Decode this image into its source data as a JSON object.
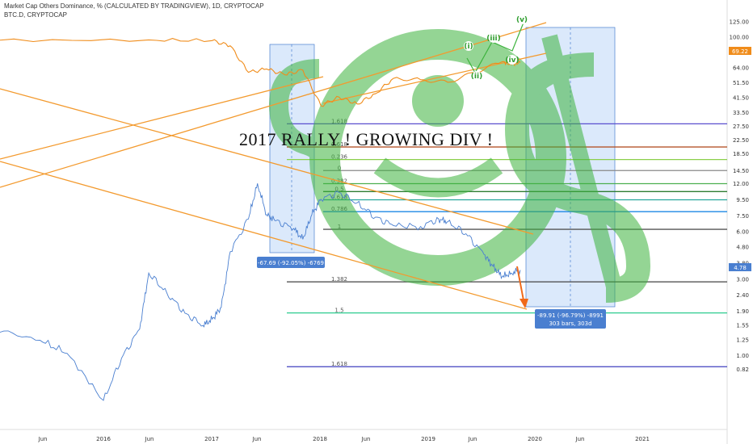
{
  "header": {
    "title": "Market Cap Others Dominance, % (CALCULATED BY TRADINGVIEW), 1D, CRYPTOCAP",
    "subtitle": "BTC.D, CRYPTOCAP"
  },
  "annotation_text": "2017 RALLY !   GROWING DIV !",
  "measure_boxes": [
    {
      "label": "-67.69 (-92.05%) -6769"
    },
    {
      "line1": "-89.91 (-96.79%) -8991",
      "line2": "303 bars, 303d"
    }
  ],
  "price_tags": {
    "upper": "69.22",
    "lower": "4.78"
  },
  "colors": {
    "others_line": "#4a7fd0",
    "btcd_line": "#f08c1a",
    "trend_lines": "#f39a2e",
    "measure_fill": "#dbe9fb",
    "measure_border": "#4a7fd0",
    "watermark": "#3db33d",
    "wave_labels": "#2e9e2e",
    "arrow": "#f06a1a"
  },
  "watermark_icon": "crypto-logo-icon",
  "chart_data": {
    "type": "line",
    "scale": "log",
    "y_ticks": [
      "125.00",
      "100.00",
      "80.00",
      "64.00",
      "51.50",
      "41.50",
      "33.50",
      "27.50",
      "22.50",
      "18.50",
      "14.50",
      "12.00",
      "9.50",
      "7.50",
      "6.00",
      "4.80",
      "3.80",
      "3.00",
      "2.40",
      "1.90",
      "1.55",
      "1.25",
      "1.00",
      "0.82"
    ],
    "x_ticks": [
      "Jun",
      "2016",
      "Jun",
      "2017",
      "Jun",
      "2018",
      "Jun",
      "2019",
      "Jun",
      "2020",
      "Jun",
      "2021"
    ],
    "x_range": [
      "2015-01",
      "2021-06"
    ],
    "series": [
      {
        "name": "BTC.D, CRYPTOCAP",
        "axis": "upper",
        "points": [
          [
            "2015-01",
            95
          ],
          [
            "2016-06",
            96
          ],
          [
            "2017-01",
            95
          ],
          [
            "2017-03",
            88
          ],
          [
            "2017-05",
            60
          ],
          [
            "2017-07",
            63
          ],
          [
            "2017-09",
            58
          ],
          [
            "2017-11",
            62
          ],
          [
            "2018-01",
            37
          ],
          [
            "2018-03",
            42
          ],
          [
            "2018-05",
            38
          ],
          [
            "2018-07",
            44
          ],
          [
            "2018-09",
            55
          ],
          [
            "2018-12",
            54
          ],
          [
            "2019-03",
            52
          ],
          [
            "2019-06",
            60
          ],
          [
            "2019-09",
            70
          ],
          [
            "2019-10",
            67
          ],
          [
            "2019-11",
            69.22
          ]
        ]
      },
      {
        "name": "Market Cap Others Dominance, %",
        "axis": "right",
        "points": [
          [
            "2015-01",
            2.2
          ],
          [
            "2015-06",
            2.0
          ],
          [
            "2015-09",
            1.7
          ],
          [
            "2016-01",
            0.95
          ],
          [
            "2016-03",
            1.6
          ],
          [
            "2016-05",
            2.3
          ],
          [
            "2016-06",
            4.6
          ],
          [
            "2016-08",
            3.6
          ],
          [
            "2016-10",
            2.8
          ],
          [
            "2016-12",
            2.4
          ],
          [
            "2017-01",
            2.6
          ],
          [
            "2017-02",
            3.0
          ],
          [
            "2017-03",
            6.0
          ],
          [
            "2017-05",
            9.0
          ],
          [
            "2017-06",
            14.0
          ],
          [
            "2017-07",
            9.5
          ],
          [
            "2017-08",
            8.8
          ],
          [
            "2017-10",
            8.0
          ],
          [
            "2017-11",
            7.0
          ],
          [
            "2017-12",
            9.5
          ],
          [
            "2018-01",
            11.5
          ],
          [
            "2018-03",
            12.5
          ],
          [
            "2018-05",
            11.0
          ],
          [
            "2018-07",
            9.2
          ],
          [
            "2018-09",
            8.3
          ],
          [
            "2018-12",
            8.2
          ],
          [
            "2019-02",
            9.0
          ],
          [
            "2019-03",
            8.7
          ],
          [
            "2019-05",
            7.5
          ],
          [
            "2019-07",
            5.8
          ],
          [
            "2019-08",
            5.0
          ],
          [
            "2019-09",
            4.4
          ],
          [
            "2019-10",
            4.6
          ],
          [
            "2019-11",
            4.78
          ]
        ]
      }
    ],
    "fib_levels": [
      {
        "label": "1.618",
        "value": 28.5
      },
      {
        "label": "0.618",
        "value": 20.4
      },
      {
        "label": "0.236",
        "value": 17.0
      },
      {
        "label": "0",
        "value": 14.5
      },
      {
        "label": "0.382",
        "value": 12.0
      },
      {
        "label": "0.5",
        "value": 10.7
      },
      {
        "label": "0.618",
        "value": 9.5
      },
      {
        "label": "0.786",
        "value": 8.0
      },
      {
        "label": "1",
        "value": 6.2
      },
      {
        "label": "1.382",
        "value": 2.9
      },
      {
        "label": "1.5",
        "value": 1.85
      },
      {
        "label": "1.618",
        "value": 0.85
      }
    ],
    "wave_labels": [
      {
        "label": "(i)",
        "x": "2019-06",
        "y": 70
      },
      {
        "label": "(ii)",
        "x": "2019-06",
        "y": 54
      },
      {
        "label": "(iii)",
        "x": "2019-08",
        "y": 86
      },
      {
        "label": "(iv)",
        "x": "2019-10",
        "y": 60
      },
      {
        "label": "(v)",
        "x": "2019-11",
        "y": 118
      }
    ]
  }
}
